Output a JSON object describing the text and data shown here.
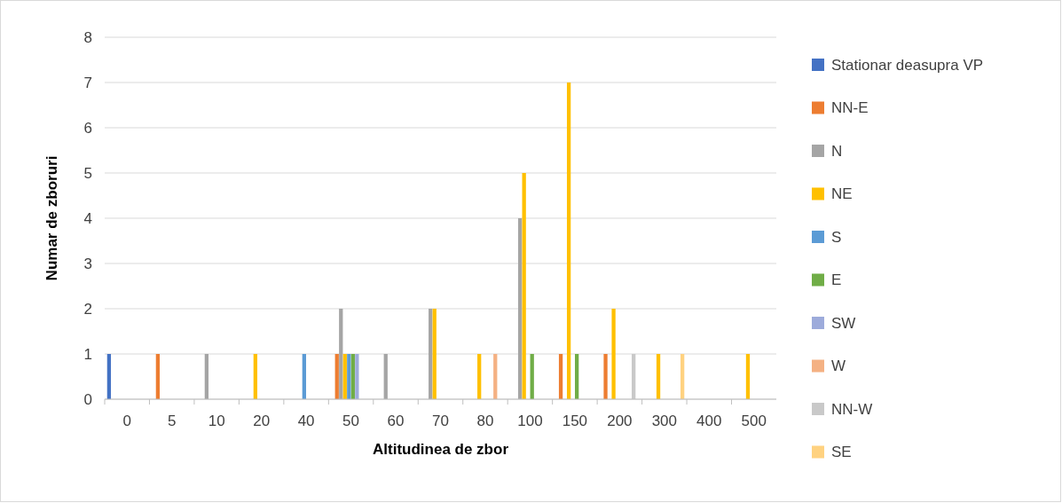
{
  "chart_data": {
    "type": "bar",
    "xlabel": "Altitudinea de zbor",
    "ylabel": "Numar de zboruri",
    "categories": [
      "0",
      "5",
      "10",
      "20",
      "40",
      "50",
      "60",
      "70",
      "80",
      "100",
      "150",
      "200",
      "300",
      "400",
      "500"
    ],
    "series": [
      {
        "name": "Stationar deasupra VP",
        "color": "#4472c4",
        "values": [
          1,
          0,
          0,
          0,
          0,
          0,
          0,
          0,
          0,
          0,
          0,
          0,
          0,
          0,
          0
        ]
      },
      {
        "name": "NN-E",
        "color": "#ed7d31",
        "values": [
          0,
          1,
          0,
          0,
          0,
          1,
          0,
          0,
          0,
          0,
          1,
          1,
          0,
          0,
          0
        ]
      },
      {
        "name": "N",
        "color": "#a5a5a5",
        "values": [
          0,
          0,
          1,
          0,
          0,
          2,
          1,
          2,
          0,
          4,
          0,
          0,
          0,
          0,
          0
        ]
      },
      {
        "name": "NE",
        "color": "#ffc000",
        "values": [
          0,
          0,
          0,
          1,
          0,
          1,
          0,
          2,
          1,
          5,
          7,
          2,
          1,
          0,
          1
        ]
      },
      {
        "name": "S",
        "color": "#5b9bd5",
        "values": [
          0,
          0,
          0,
          0,
          1,
          1,
          0,
          0,
          0,
          0,
          0,
          0,
          0,
          0,
          0
        ]
      },
      {
        "name": "E",
        "color": "#70ad47",
        "values": [
          0,
          0,
          0,
          0,
          0,
          1,
          0,
          0,
          0,
          1,
          1,
          0,
          0,
          0,
          0
        ]
      },
      {
        "name": "SW",
        "color": "#9dabdb",
        "values": [
          0,
          0,
          0,
          0,
          0,
          1,
          0,
          0,
          0,
          0,
          0,
          0,
          0,
          0,
          0
        ]
      },
      {
        "name": "W",
        "color": "#f4b183",
        "values": [
          0,
          0,
          0,
          0,
          0,
          0,
          0,
          0,
          1,
          0,
          0,
          0,
          0,
          0,
          0
        ]
      },
      {
        "name": "NN-W",
        "color": "#c9c9c9",
        "values": [
          0,
          0,
          0,
          0,
          0,
          0,
          0,
          0,
          0,
          0,
          0,
          1,
          0,
          0,
          0
        ]
      },
      {
        "name": "SE",
        "color": "#ffd280",
        "values": [
          0,
          0,
          0,
          0,
          0,
          0,
          0,
          0,
          0,
          0,
          0,
          0,
          1,
          0,
          0
        ]
      }
    ],
    "ylim": [
      0,
      8
    ],
    "yticks": [
      0,
      1,
      2,
      3,
      4,
      5,
      6,
      7,
      8
    ],
    "grid": "y",
    "legend": "right"
  }
}
